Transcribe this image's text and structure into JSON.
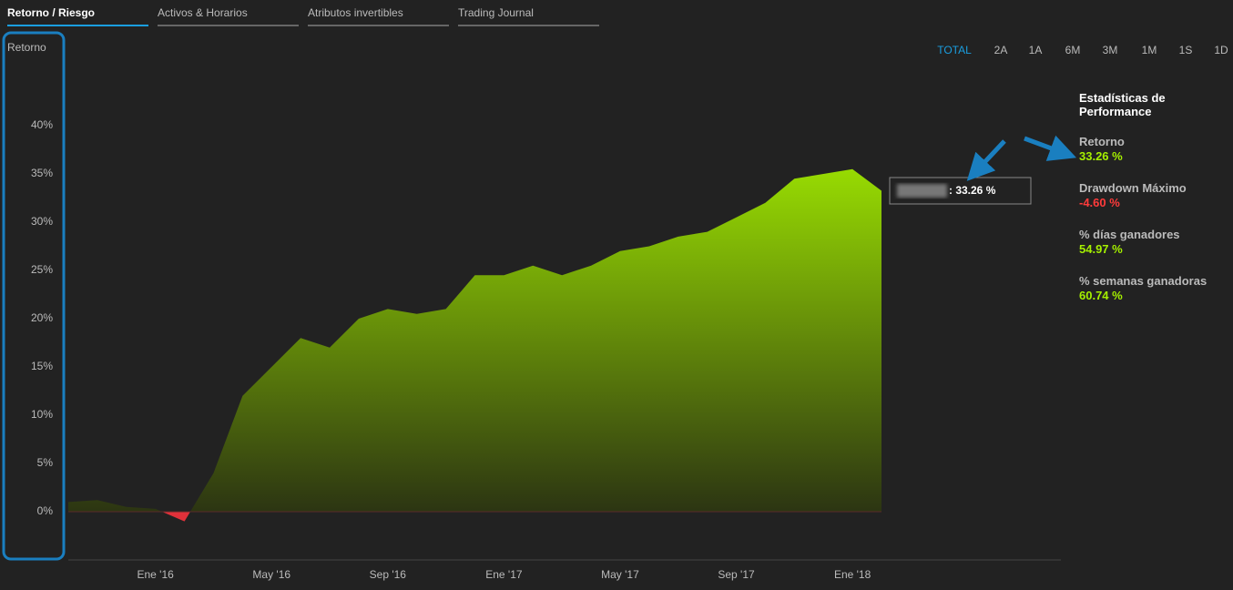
{
  "tabs": [
    "Retorno / Riesgo",
    "Activos & Horarios",
    "Atributos invertibles",
    "Trading Journal"
  ],
  "periods": [
    "TOTAL",
    "2A",
    "1A",
    "6M",
    "3M",
    "1M",
    "1S",
    "1D"
  ],
  "stats": {
    "title": "Estadísticas de Performance",
    "items": [
      {
        "label": "Retorno",
        "value": "33.26 %"
      },
      {
        "label": "Drawdown Máximo",
        "value": "-4.60 %"
      },
      {
        "label": "% días ganadores",
        "value": "54.97 %"
      },
      {
        "label": "% semanas ganadoras",
        "value": "60.74 %"
      }
    ]
  },
  "tooltip": ": 33.26 %",
  "chart_data": {
    "type": "area",
    "y_label": "Retorno",
    "x": [
      "2015-10",
      "2015-11",
      "2015-12",
      "2016-01",
      "2016-02",
      "2016-03",
      "2016-04",
      "2016-05",
      "2016-06",
      "2016-07",
      "2016-08",
      "2016-09",
      "2016-10",
      "2016-11",
      "2016-12",
      "2017-01",
      "2017-02",
      "2017-03",
      "2017-04",
      "2017-05",
      "2017-06",
      "2017-07",
      "2017-08",
      "2017-09",
      "2017-10",
      "2017-11",
      "2017-12",
      "2018-01",
      "2018-02"
    ],
    "values": [
      1.0,
      1.2,
      0.5,
      0.3,
      -1.0,
      4,
      12,
      15,
      18,
      17,
      20,
      21,
      20.5,
      21,
      24.5,
      24.5,
      25.5,
      24.5,
      25.5,
      27,
      27.5,
      28.5,
      29,
      30.5,
      32,
      34.5,
      35,
      35.5,
      33.26
    ],
    "ylim": [
      -5,
      40
    ],
    "yticks": [
      {
        "value": 0,
        "label": "0%"
      },
      {
        "value": 5,
        "label": "5%"
      },
      {
        "value": 10,
        "label": "10%"
      },
      {
        "value": 15,
        "label": "15%"
      },
      {
        "value": 20,
        "label": "20%"
      },
      {
        "value": 25,
        "label": "25%"
      },
      {
        "value": 30,
        "label": "30%"
      },
      {
        "value": 35,
        "label": "35%"
      },
      {
        "value": 40,
        "label": "40%"
      }
    ],
    "xticks": [
      {
        "value": "2016-01",
        "label": "Ene '16"
      },
      {
        "value": "2016-05",
        "label": "May '16"
      },
      {
        "value": "2016-09",
        "label": "Sep '16"
      },
      {
        "value": "2017-01",
        "label": "Ene '17"
      },
      {
        "value": "2017-05",
        "label": "May '17"
      },
      {
        "value": "2017-09",
        "label": "Sep '17"
      },
      {
        "value": "2018-01",
        "label": "Ene '18"
      }
    ],
    "colors": {
      "positive": "#a5f000",
      "negative": "#e0313a"
    }
  }
}
